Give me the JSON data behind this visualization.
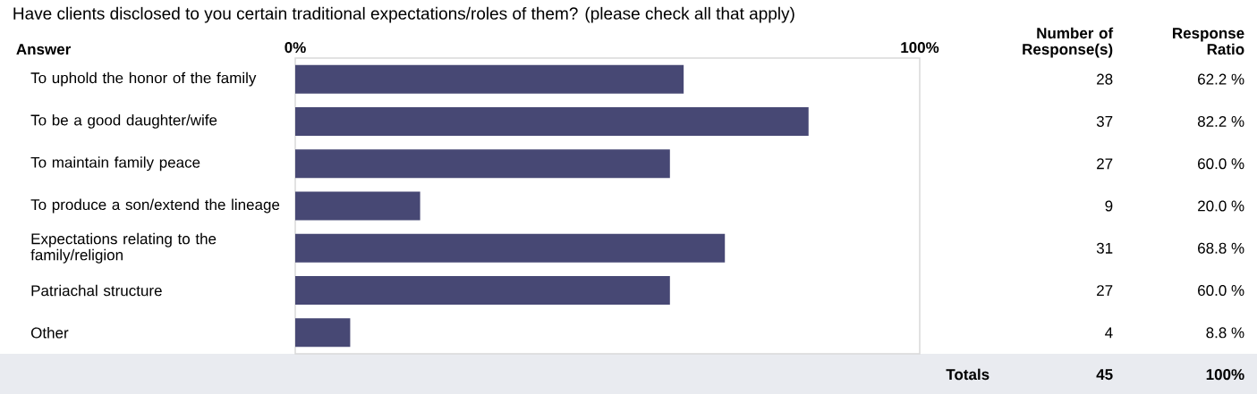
{
  "chart_data": {
    "type": "bar",
    "orientation": "horizontal",
    "title": "Have clients disclosed to you certain traditional expectations/roles of them? (please check all that apply)",
    "categories": [
      "To uphold the honor of the family",
      "To be a good daughter/wife",
      "To maintain family peace",
      "To produce a son/extend the lineage",
      "Expectations relating to the family/religion",
      "Patriachal structure",
      "Other"
    ],
    "values": [
      62.2,
      82.2,
      60.0,
      20.0,
      68.8,
      60.0,
      8.8
    ],
    "value_labels": [
      "62.2 %",
      "82.2 %",
      "60.0 %",
      "20.0 %",
      "68.8 %",
      "60.0 %",
      "8.8 %"
    ],
    "color": "#474874",
    "xlim": [
      0,
      100
    ],
    "xticks": [
      {
        "value": 0,
        "label": "0%"
      },
      {
        "value": 100,
        "label": "100%"
      }
    ],
    "annotations": [
      "Answer",
      "Number of Response(s)",
      "Response Ratio",
      "Totals",
      "45",
      "100%",
      "28",
      "37",
      "27",
      "9",
      "31",
      "27",
      "4"
    ]
  }
}
